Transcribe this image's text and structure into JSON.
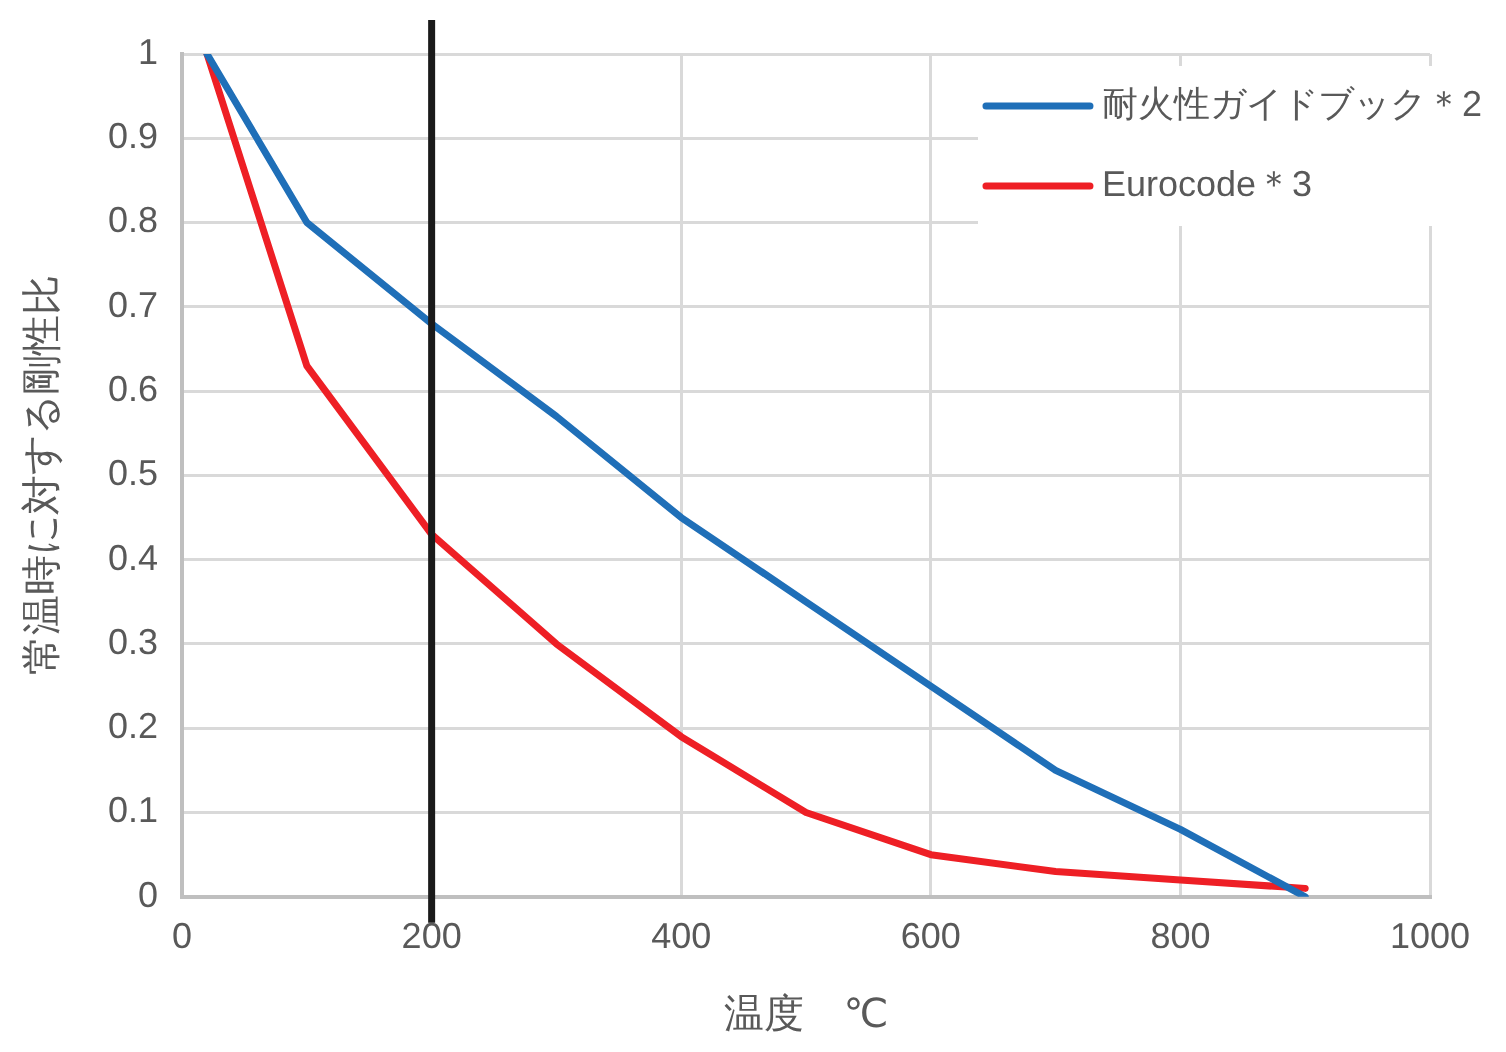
{
  "chart_data": {
    "type": "line",
    "xlabel": "温度　℃",
    "ylabel": "常温時に対する剛性比",
    "xlim": [
      0,
      1000
    ],
    "xticks": [
      0,
      200,
      400,
      600,
      800,
      1000
    ],
    "ylim": [
      0,
      1
    ],
    "yticks": [
      0,
      0.1,
      0.2,
      0.3,
      0.4,
      0.5,
      0.6,
      0.7,
      0.8,
      0.9,
      1
    ],
    "grid": true,
    "legend": "top right",
    "marker": "none",
    "line_style": "solid",
    "series": [
      {
        "name": "耐火性ガイドブック＊2",
        "color": "#1f6fb8",
        "x": [
          20,
          100,
          200,
          300,
          400,
          500,
          600,
          700,
          800,
          900
        ],
        "values": [
          1,
          0.8,
          0.68,
          0.57,
          0.45,
          0.35,
          0.25,
          0.15,
          0.08,
          0
        ]
      },
      {
        "name": "Eurocode＊3",
        "color": "#ee1f25",
        "x": [
          20,
          100,
          200,
          300,
          400,
          500,
          600,
          700,
          800,
          900
        ],
        "values": [
          1,
          0.63,
          0.43,
          0.3,
          0.19,
          0.1,
          0.05,
          0.03,
          0.02,
          0.01
        ]
      }
    ],
    "ref_lines": [
      {
        "axis": "x",
        "value": 200,
        "color": "#1a1a1a",
        "line_style": "solid"
      }
    ]
  }
}
